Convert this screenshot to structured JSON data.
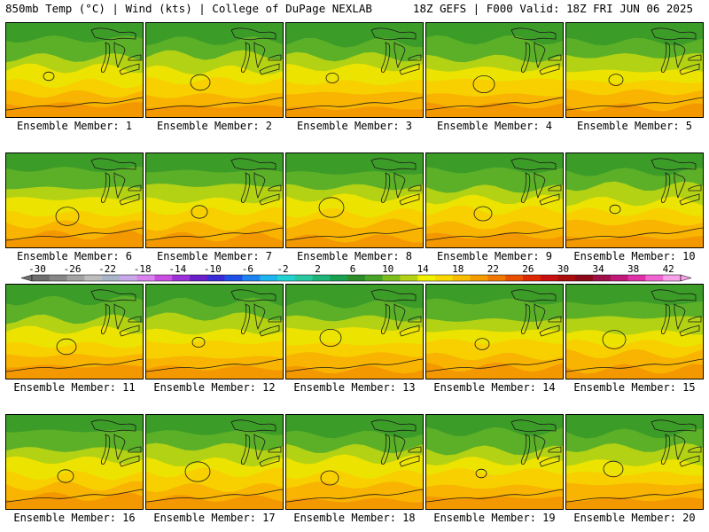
{
  "header": {
    "left": "850mb Temp (°C) | Wind (kts) | College of DuPage NEXLAB",
    "right": "18Z GEFS | F000 Valid: 18Z FRI JUN 06 2025"
  },
  "panels": [
    {
      "label": "Ensemble Member: 1"
    },
    {
      "label": "Ensemble Member: 2"
    },
    {
      "label": "Ensemble Member: 3"
    },
    {
      "label": "Ensemble Member: 4"
    },
    {
      "label": "Ensemble Member: 5"
    },
    {
      "label": "Ensemble Member: 6"
    },
    {
      "label": "Ensemble Member: 7"
    },
    {
      "label": "Ensemble Member: 8"
    },
    {
      "label": "Ensemble Member: 9"
    },
    {
      "label": "Ensemble Member: 10"
    },
    {
      "label": "Ensemble Member: 11"
    },
    {
      "label": "Ensemble Member: 12"
    },
    {
      "label": "Ensemble Member: 13"
    },
    {
      "label": "Ensemble Member: 14"
    },
    {
      "label": "Ensemble Member: 15"
    },
    {
      "label": "Ensemble Member: 16"
    },
    {
      "label": "Ensemble Member: 17"
    },
    {
      "label": "Ensemble Member: 18"
    },
    {
      "label": "Ensemble Member: 19"
    },
    {
      "label": "Ensemble Member: 20"
    }
  ],
  "colorbar": {
    "tick_labels": [
      "-30",
      "-26",
      "-22",
      "-18",
      "-14",
      "-10",
      "-6",
      "-2",
      "2",
      "6",
      "10",
      "14",
      "18",
      "22",
      "26",
      "30",
      "34",
      "38",
      "42"
    ],
    "colors": [
      "#6e6e6e",
      "#878787",
      "#a3a3a3",
      "#bdbdbd",
      "#a8b4c8",
      "#c8a8e8",
      "#d982f0",
      "#c94de0",
      "#9b2fd8",
      "#6a1fc8",
      "#3a2ad8",
      "#1e50e8",
      "#1e82f0",
      "#1eb4f0",
      "#22d2d2",
      "#28c8a0",
      "#1eb478",
      "#18a050",
      "#2c8c28",
      "#48a428",
      "#7cbc1c",
      "#b4d214",
      "#f0f000",
      "#f8d800",
      "#f8bc00",
      "#f49c00",
      "#f07800",
      "#e85000",
      "#e02800",
      "#c81010",
      "#a80c0c",
      "#8c0a18",
      "#a01048",
      "#c01878",
      "#e030a8",
      "#f064d0",
      "#f8a0e8"
    ]
  },
  "map_colors": {
    "green_dark": "#3c9c28",
    "green": "#5cb028",
    "yellow_green": "#b4d214",
    "yellow": "#ece400",
    "gold": "#f8d000",
    "orange_light": "#f8b400",
    "orange": "#f49800"
  }
}
